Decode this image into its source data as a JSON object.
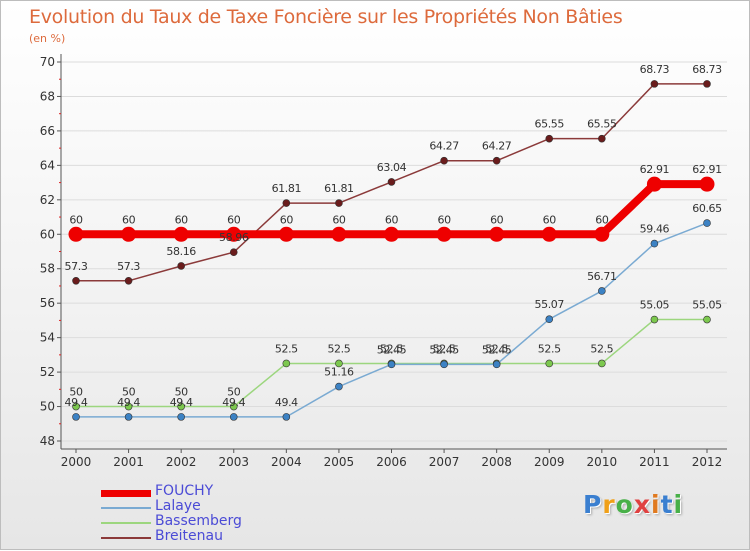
{
  "title": "Evolution du Taux de Taxe Foncière sur les Propriétés Non Bâties",
  "unit_label": "(en %)",
  "brand": {
    "text": "Proxiti",
    "letters": [
      "P",
      "r",
      "o",
      "x",
      "i",
      "t",
      "i"
    ],
    "colors": [
      "#3a7fd0",
      "#f0a018",
      "#48b048",
      "#e04040",
      "#e07a20",
      "#3a7fd0",
      "#48b048"
    ]
  },
  "chart_data": {
    "type": "line",
    "title": "Evolution du Taux de Taxe Foncière sur les Propriétés Non Bâties",
    "ylabel": "(en %)",
    "xlabel": "",
    "x": [
      "2000",
      "2001",
      "2002",
      "2003",
      "2004",
      "2005",
      "2006",
      "2007",
      "2008",
      "2009",
      "2010",
      "2011",
      "2012"
    ],
    "ylim": [
      48,
      70
    ],
    "yticks": [
      48,
      50,
      52,
      54,
      56,
      58,
      60,
      62,
      64,
      66,
      68,
      70
    ],
    "legend_position": "bottom-left",
    "series": [
      {
        "name": "FOUCHY",
        "color": "#ee0000",
        "marker": "#ee0000",
        "width": 8,
        "values": [
          60,
          60,
          60,
          60,
          60,
          60,
          60,
          60,
          60,
          60,
          60,
          62.91,
          62.91
        ],
        "labels": [
          "60",
          "60",
          "60",
          "60",
          "60",
          "60",
          "60",
          "60",
          "60",
          "60",
          "60",
          "62.91",
          "62.91"
        ]
      },
      {
        "name": "Lalaye",
        "color": "#7aaad2",
        "marker": "#3c82c4",
        "width": 1.5,
        "values": [
          49.4,
          49.4,
          49.4,
          49.4,
          49.4,
          51.16,
          52.45,
          52.45,
          52.45,
          55.07,
          56.71,
          59.46,
          60.65
        ],
        "labels": [
          "49.4",
          "49.4",
          "49.4",
          "49.4",
          "49.4",
          "51.16",
          "52.45",
          "52.45",
          "52.45",
          "55.07",
          "56.71",
          "59.46",
          "60.65"
        ]
      },
      {
        "name": "Bassemberg",
        "color": "#9cd67e",
        "marker": "#7cc84e",
        "width": 1.5,
        "values": [
          50,
          50,
          50,
          50,
          52.5,
          52.5,
          52.5,
          52.5,
          52.5,
          52.5,
          52.5,
          55.05,
          55.05
        ],
        "labels": [
          "50",
          "50",
          "50",
          "50",
          "52.5",
          "52.5",
          "52.5",
          "52.5",
          "52.5",
          "52.5",
          "52.5",
          "55.05",
          "55.05"
        ]
      },
      {
        "name": "Breitenau",
        "color": "#8b3a3a",
        "marker": "#6a1c1c",
        "width": 1.5,
        "values": [
          57.3,
          57.3,
          58.16,
          58.96,
          61.81,
          61.81,
          63.04,
          64.27,
          64.27,
          65.55,
          65.55,
          68.73,
          68.73
        ],
        "labels": [
          "57.3",
          "57.3",
          "58.16",
          "58.96",
          "61.81",
          "61.81",
          "63.04",
          "64.27",
          "64.27",
          "65.55",
          "65.55",
          "68.73",
          "68.73"
        ]
      }
    ]
  }
}
